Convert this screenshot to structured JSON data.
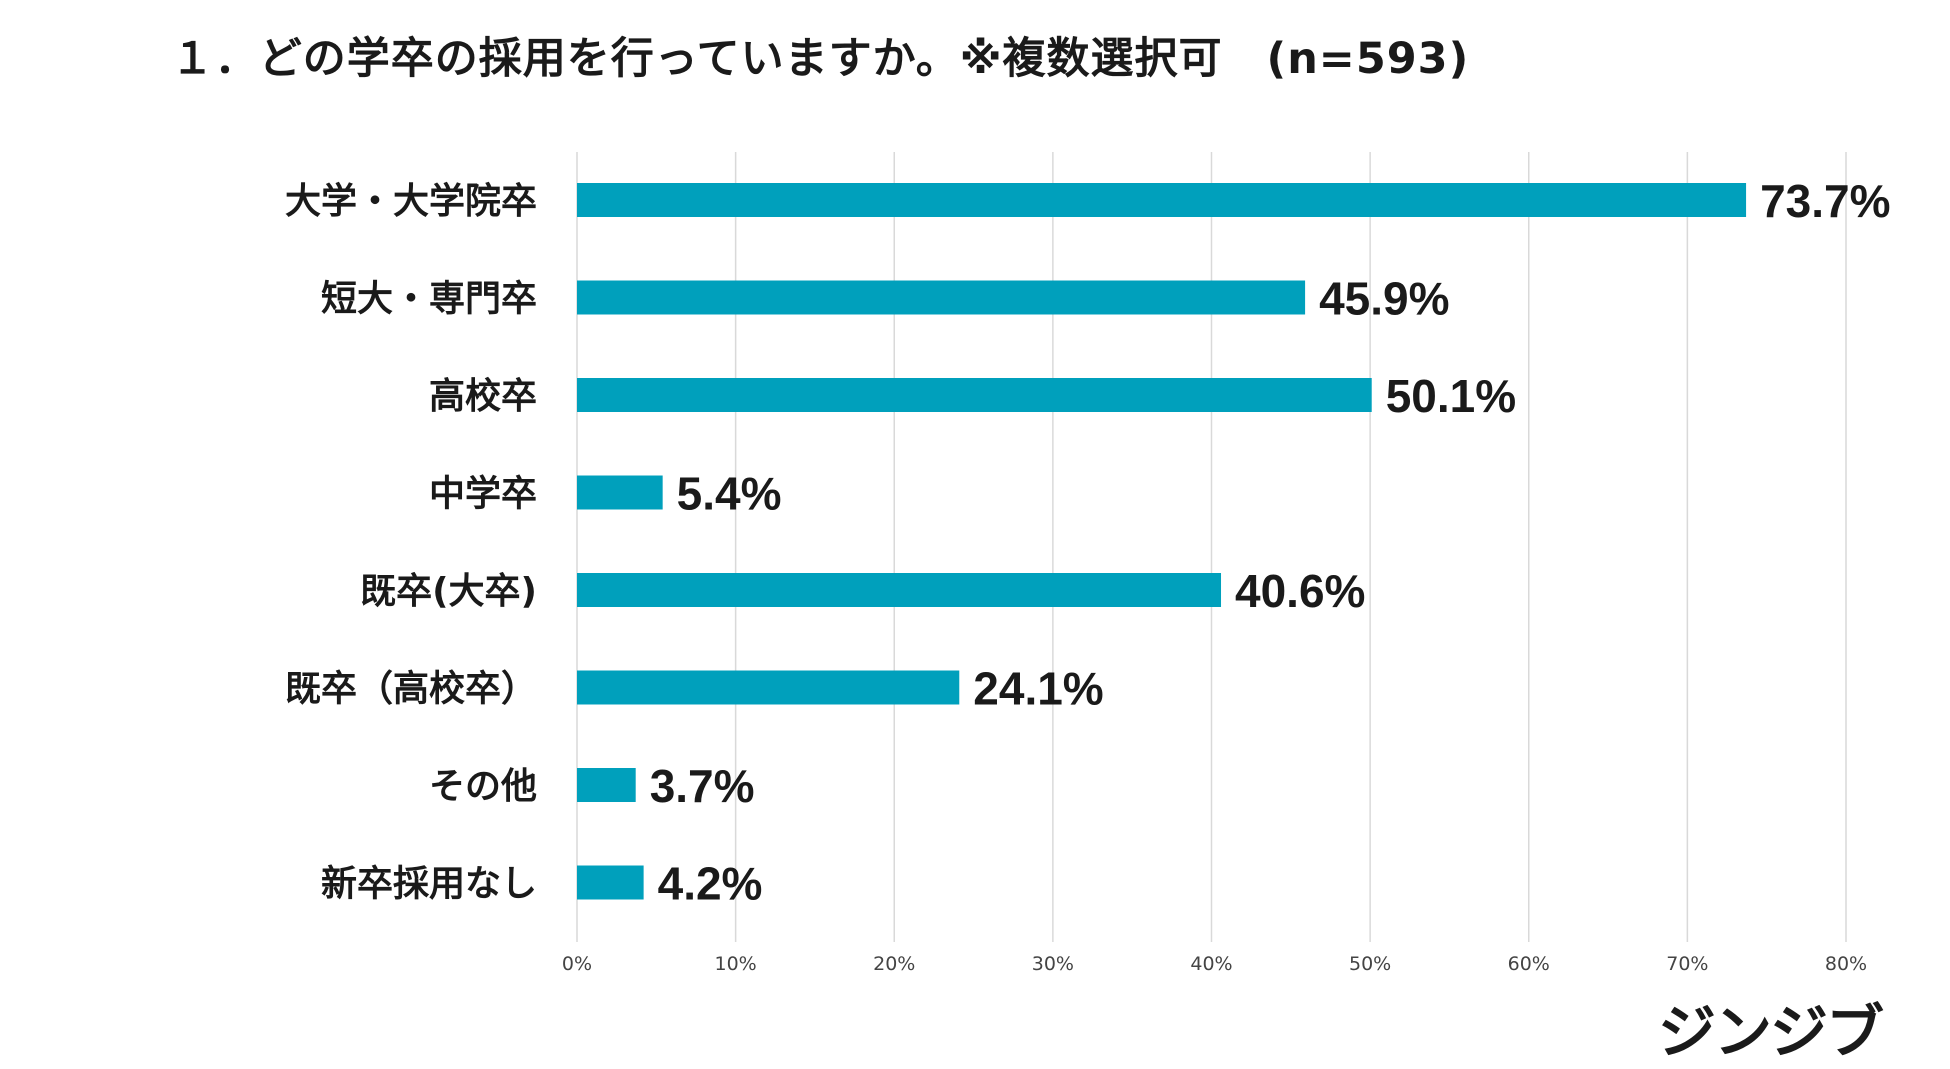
{
  "title": "１．どの学卒の採用を行っていますか。※複数選択可　(n=593)",
  "brand": "ジンジブ",
  "colors": {
    "bar": "#00A0BC",
    "grid": "#d9d9d9",
    "text": "#1a1a1a"
  },
  "chart_data": {
    "type": "bar",
    "orientation": "horizontal",
    "title": "１．どの学卒の採用を行っていますか。※複数選択可　(n=593)",
    "categories": [
      "大学・大学院卒",
      "短大・専門卒",
      "高校卒",
      "中学卒",
      "既卒(大卒)",
      "既卒（高校卒）",
      "その他",
      "新卒採用なし"
    ],
    "values": [
      73.7,
      45.9,
      50.1,
      5.4,
      40.6,
      24.1,
      3.7,
      4.2
    ],
    "value_labels": [
      "73.7%",
      "45.9%",
      "50.1%",
      "5.4%",
      "40.6%",
      "24.1%",
      "3.7%",
      "4.2%"
    ],
    "xlim": [
      0,
      80
    ],
    "xticks": [
      0,
      10,
      20,
      30,
      40,
      50,
      60,
      70,
      80
    ],
    "xtick_labels": [
      "0%",
      "10%",
      "20%",
      "30%",
      "40%",
      "50%",
      "60%",
      "70%",
      "80%"
    ],
    "xlabel": "",
    "ylabel": "",
    "grid": true,
    "legend": "none"
  }
}
